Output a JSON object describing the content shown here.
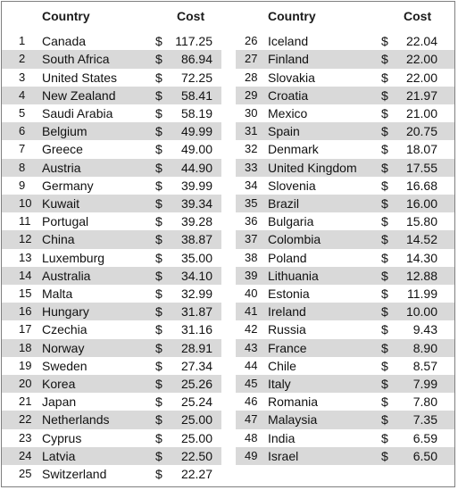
{
  "table": {
    "headers": {
      "country_left": "Country",
      "cost_left": "Cost",
      "country_right": "Country",
      "cost_right": "Cost"
    },
    "currency_symbol": "$",
    "left_rows": [
      {
        "rank": "1",
        "country": "Canada",
        "cost": "117.25"
      },
      {
        "rank": "2",
        "country": "South Africa",
        "cost": "86.94"
      },
      {
        "rank": "3",
        "country": "United States",
        "cost": "72.25"
      },
      {
        "rank": "4",
        "country": "New Zealand",
        "cost": "58.41"
      },
      {
        "rank": "5",
        "country": "Saudi Arabia",
        "cost": "58.19"
      },
      {
        "rank": "6",
        "country": "Belgium",
        "cost": "49.99"
      },
      {
        "rank": "7",
        "country": "Greece",
        "cost": "49.00"
      },
      {
        "rank": "8",
        "country": "Austria",
        "cost": "44.90"
      },
      {
        "rank": "9",
        "country": "Germany",
        "cost": "39.99"
      },
      {
        "rank": "10",
        "country": "Kuwait",
        "cost": "39.34"
      },
      {
        "rank": "11",
        "country": "Portugal",
        "cost": "39.28"
      },
      {
        "rank": "12",
        "country": "China",
        "cost": "38.87"
      },
      {
        "rank": "13",
        "country": "Luxemburg",
        "cost": "35.00"
      },
      {
        "rank": "14",
        "country": "Australia",
        "cost": "34.10"
      },
      {
        "rank": "15",
        "country": "Malta",
        "cost": "32.99"
      },
      {
        "rank": "16",
        "country": "Hungary",
        "cost": "31.87"
      },
      {
        "rank": "17",
        "country": "Czechia",
        "cost": "31.16"
      },
      {
        "rank": "18",
        "country": "Norway",
        "cost": "28.91"
      },
      {
        "rank": "19",
        "country": "Sweden",
        "cost": "27.34"
      },
      {
        "rank": "20",
        "country": "Korea",
        "cost": "25.26"
      },
      {
        "rank": "21",
        "country": "Japan",
        "cost": "25.24"
      },
      {
        "rank": "22",
        "country": "Netherlands",
        "cost": "25.00"
      },
      {
        "rank": "23",
        "country": "Cyprus",
        "cost": "25.00"
      },
      {
        "rank": "24",
        "country": "Latvia",
        "cost": "22.50"
      },
      {
        "rank": "25",
        "country": "Switzerland",
        "cost": "22.27"
      }
    ],
    "right_rows": [
      {
        "rank": "26",
        "country": "Iceland",
        "cost": "22.04"
      },
      {
        "rank": "27",
        "country": "Finland",
        "cost": "22.00"
      },
      {
        "rank": "28",
        "country": "Slovakia",
        "cost": "22.00"
      },
      {
        "rank": "29",
        "country": "Croatia",
        "cost": "21.97"
      },
      {
        "rank": "30",
        "country": "Mexico",
        "cost": "21.00"
      },
      {
        "rank": "31",
        "country": "Spain",
        "cost": "20.75"
      },
      {
        "rank": "32",
        "country": "Denmark",
        "cost": "18.07"
      },
      {
        "rank": "33",
        "country": "United Kingdom",
        "cost": "17.55"
      },
      {
        "rank": "34",
        "country": "Slovenia",
        "cost": "16.68"
      },
      {
        "rank": "35",
        "country": "Brazil",
        "cost": "16.00"
      },
      {
        "rank": "36",
        "country": "Bulgaria",
        "cost": "15.80"
      },
      {
        "rank": "37",
        "country": "Colombia",
        "cost": "14.52"
      },
      {
        "rank": "38",
        "country": "Poland",
        "cost": "14.30"
      },
      {
        "rank": "39",
        "country": "Lithuania",
        "cost": "12.88"
      },
      {
        "rank": "40",
        "country": "Estonia",
        "cost": "11.99"
      },
      {
        "rank": "41",
        "country": "Ireland",
        "cost": "10.00"
      },
      {
        "rank": "42",
        "country": "Russia",
        "cost": "9.43"
      },
      {
        "rank": "43",
        "country": "France",
        "cost": "8.90"
      },
      {
        "rank": "44",
        "country": "Chile",
        "cost": "8.57"
      },
      {
        "rank": "45",
        "country": "Italy",
        "cost": "7.99"
      },
      {
        "rank": "46",
        "country": "Romania",
        "cost": "7.80"
      },
      {
        "rank": "47",
        "country": "Malaysia",
        "cost": "7.35"
      },
      {
        "rank": "48",
        "country": "India",
        "cost": "6.59"
      },
      {
        "rank": "49",
        "country": "Israel",
        "cost": "6.50"
      }
    ],
    "colors": {
      "shade": "#d9d9d9",
      "border": "#7f7f7f",
      "text": "#111111"
    }
  },
  "chart_data": {
    "type": "table",
    "columns": [
      "",
      "Country",
      "Cost"
    ],
    "rows": [
      [
        "1",
        "Canada",
        117.25
      ],
      [
        "2",
        "South Africa",
        86.94
      ],
      [
        "3",
        "United States",
        72.25
      ],
      [
        "4",
        "New Zealand",
        58.41
      ],
      [
        "5",
        "Saudi Arabia",
        58.19
      ],
      [
        "6",
        "Belgium",
        49.99
      ],
      [
        "7",
        "Greece",
        49.0
      ],
      [
        "8",
        "Austria",
        44.9
      ],
      [
        "9",
        "Germany",
        39.99
      ],
      [
        "10",
        "Kuwait",
        39.34
      ],
      [
        "11",
        "Portugal",
        39.28
      ],
      [
        "12",
        "China",
        38.87
      ],
      [
        "13",
        "Luxemburg",
        35.0
      ],
      [
        "14",
        "Australia",
        34.1
      ],
      [
        "15",
        "Malta",
        32.99
      ],
      [
        "16",
        "Hungary",
        31.87
      ],
      [
        "17",
        "Czechia",
        31.16
      ],
      [
        "18",
        "Norway",
        28.91
      ],
      [
        "19",
        "Sweden",
        27.34
      ],
      [
        "20",
        "Korea",
        25.26
      ],
      [
        "21",
        "Japan",
        25.24
      ],
      [
        "22",
        "Netherlands",
        25.0
      ],
      [
        "23",
        "Cyprus",
        25.0
      ],
      [
        "24",
        "Latvia",
        22.5
      ],
      [
        "25",
        "Switzerland",
        22.27
      ],
      [
        "26",
        "Iceland",
        22.04
      ],
      [
        "27",
        "Finland",
        22.0
      ],
      [
        "28",
        "Slovakia",
        22.0
      ],
      [
        "29",
        "Croatia",
        21.97
      ],
      [
        "30",
        "Mexico",
        21.0
      ],
      [
        "31",
        "Spain",
        20.75
      ],
      [
        "32",
        "Denmark",
        18.07
      ],
      [
        "33",
        "United Kingdom",
        17.55
      ],
      [
        "34",
        "Slovenia",
        16.68
      ],
      [
        "35",
        "Brazil",
        16.0
      ],
      [
        "36",
        "Bulgaria",
        15.8
      ],
      [
        "37",
        "Colombia",
        14.52
      ],
      [
        "38",
        "Poland",
        14.3
      ],
      [
        "39",
        "Lithuania",
        12.88
      ],
      [
        "40",
        "Estonia",
        11.99
      ],
      [
        "41",
        "Ireland",
        10.0
      ],
      [
        "42",
        "Russia",
        9.43
      ],
      [
        "43",
        "France",
        8.9
      ],
      [
        "44",
        "Chile",
        8.57
      ],
      [
        "45",
        "Italy",
        7.99
      ],
      [
        "46",
        "Romania",
        7.8
      ],
      [
        "47",
        "Malaysia",
        7.35
      ],
      [
        "48",
        "India",
        6.59
      ],
      [
        "49",
        "Israel",
        6.5
      ]
    ],
    "unit_prefix": "$",
    "shaded_alternate_rows": true
  }
}
